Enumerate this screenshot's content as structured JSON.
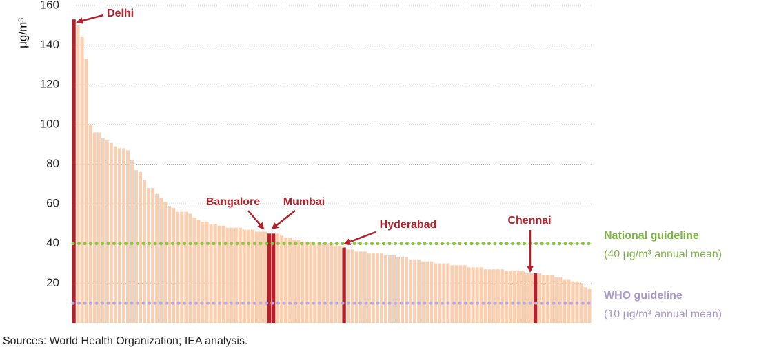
{
  "chart_data": {
    "type": "bar",
    "ylabel": "μg/m³",
    "ylim": [
      0,
      160
    ],
    "yticks": [
      20,
      40,
      60,
      80,
      100,
      120,
      140,
      160
    ],
    "grid": true,
    "color": "#f9cfb1",
    "highlight_color": "#b3212b",
    "values": [
      153,
      150,
      144,
      133,
      100,
      96,
      96,
      93,
      92,
      91,
      89,
      88,
      88,
      87,
      82,
      77,
      76,
      72,
      68,
      68,
      65,
      63,
      61,
      59,
      58,
      56,
      56,
      56,
      55,
      53,
      52,
      51,
      51,
      50,
      50,
      49,
      49,
      48,
      48,
      48,
      48,
      47,
      47,
      47,
      46,
      46,
      46,
      45,
      45,
      45,
      44,
      43,
      43,
      42,
      42,
      41,
      41,
      41,
      40,
      40,
      40,
      40,
      40,
      39,
      39,
      38,
      37,
      37,
      36,
      36,
      36,
      35,
      35,
      35,
      35,
      34,
      34,
      34,
      33,
      33,
      33,
      32,
      32,
      32,
      31,
      31,
      31,
      30,
      30,
      30,
      30,
      29,
      29,
      29,
      29,
      28,
      28,
      28,
      28,
      27,
      27,
      27,
      27,
      27,
      26,
      26,
      26,
      26,
      26,
      25,
      25,
      25,
      25,
      24,
      24,
      24,
      23,
      23,
      22,
      22,
      21,
      21,
      20,
      18,
      17
    ],
    "annotations": [
      {
        "label": "Delhi",
        "index": 0
      },
      {
        "label": "Bangalore",
        "index": 47
      },
      {
        "label": "Mumbai",
        "index": 48
      },
      {
        "label": "Hyderabad",
        "index": 65
      },
      {
        "label": "Chennai",
        "index": 111
      }
    ],
    "reference_lines": [
      {
        "name": "National guideline",
        "label": "(40 μg/m³ annual mean)",
        "value": 40,
        "color": "#8cc540",
        "text_color": "#7db443"
      },
      {
        "name": "WHO guideline",
        "label": "(10 μg/m³ annual mean)",
        "value": 10,
        "color": "#b9aadb",
        "text_color": "#a898cc"
      }
    ],
    "source": "Sources: World Health Organization; IEA analysis."
  }
}
